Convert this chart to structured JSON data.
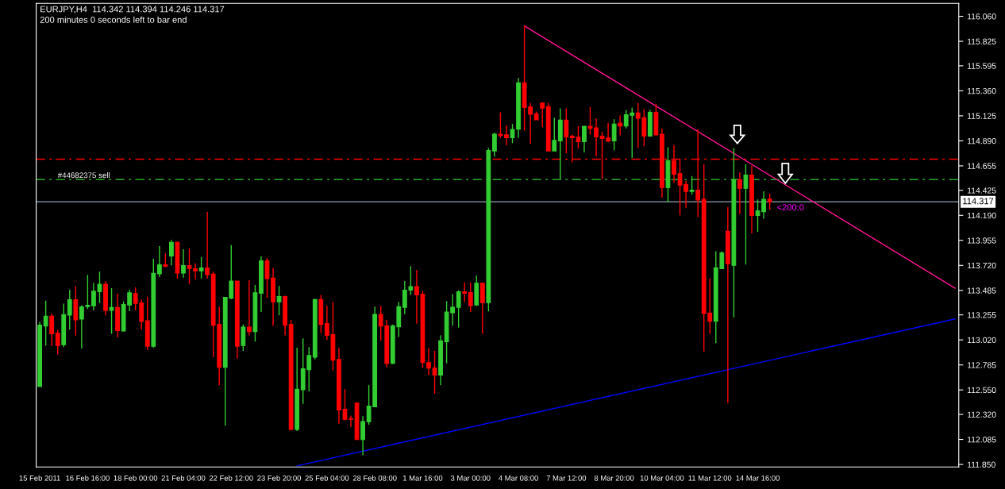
{
  "chart_data": {
    "type": "candlestick",
    "title": "EURJPY,H4  114.342 114.394 114.246 114.317",
    "subtitle": "200 minutes 0 seconds left to bar end",
    "categories": [
      "15 Feb 2011",
      null,
      null,
      null,
      null,
      null,
      null,
      null,
      "16 Feb 16:00",
      null,
      null,
      null,
      null,
      null,
      null,
      null,
      "18 Feb 00:00",
      null,
      null,
      null,
      null,
      null,
      null,
      null,
      "21 Feb 04:00",
      null,
      null,
      null,
      null,
      null,
      null,
      null,
      "22 Feb 12:00",
      null,
      null,
      null,
      null,
      null,
      null,
      null,
      "23 Feb 20:00",
      null,
      null,
      null,
      null,
      null,
      null,
      null,
      "25 Feb 04:00",
      null,
      null,
      null,
      null,
      null,
      null,
      null,
      "28 Feb 08:00",
      null,
      null,
      null,
      null,
      null,
      null,
      null,
      "1 Mar 16:00",
      null,
      null,
      null,
      null,
      null,
      null,
      null,
      "3 Mar 00:00",
      null,
      null,
      null,
      null,
      null,
      null,
      null,
      "4 Mar 08:00",
      null,
      null,
      null,
      null,
      null,
      null,
      null,
      "7 Mar 12:00",
      null,
      null,
      null,
      null,
      null,
      null,
      null,
      "8 Mar 20:00",
      null,
      null,
      null,
      null,
      null,
      null,
      null,
      "10 Mar 04:00",
      null,
      null,
      null,
      null,
      null,
      null,
      null,
      "11 Mar 12:00",
      null,
      null,
      null,
      null,
      null,
      null,
      null,
      "14 Mar 16:00",
      null,
      null,
      null,
      null,
      null,
      null,
      null,
      null,
      null,
      null,
      null,
      null,
      null,
      null,
      null,
      null,
      null,
      null,
      null,
      null,
      null,
      null,
      null,
      null,
      null,
      null,
      null,
      null,
      null,
      null,
      null,
      null,
      null
    ],
    "ohlc": [
      [
        112.581,
        113.19,
        112.581,
        113.158
      ],
      [
        113.151,
        113.389,
        112.966,
        113.243
      ],
      [
        113.243,
        113.268,
        112.961,
        113.078
      ],
      [
        113.082,
        113.112,
        112.88,
        112.968
      ],
      [
        112.975,
        113.36,
        112.953,
        113.258
      ],
      [
        113.253,
        113.492,
        113.117,
        113.397
      ],
      [
        113.397,
        113.526,
        113.061,
        113.209
      ],
      [
        113.216,
        113.346,
        112.939,
        113.331
      ],
      [
        113.333,
        113.631,
        113.309,
        113.346
      ],
      [
        113.341,
        113.557,
        113.297,
        113.477
      ],
      [
        113.472,
        113.66,
        113.367,
        113.543
      ],
      [
        113.543,
        113.572,
        113.251,
        113.297
      ],
      [
        113.297,
        113.506,
        113.078,
        113.324
      ],
      [
        113.324,
        113.455,
        113.041,
        113.107
      ],
      [
        113.104,
        113.382,
        113.1,
        113.353
      ],
      [
        113.348,
        113.492,
        113.29,
        113.462
      ],
      [
        113.455,
        113.514,
        113.297,
        113.363
      ],
      [
        113.367,
        113.397,
        113.114,
        113.194
      ],
      [
        113.199,
        113.426,
        112.924,
        112.961
      ],
      [
        112.961,
        113.782,
        112.946,
        113.645
      ],
      [
        113.64,
        113.901,
        113.611,
        113.726
      ],
      [
        113.726,
        113.835,
        113.704,
        113.711
      ],
      [
        113.808,
        113.959,
        113.721,
        113.937
      ],
      [
        113.937,
        113.945,
        113.596,
        113.648
      ],
      [
        113.648,
        113.872,
        113.604,
        113.718
      ],
      [
        113.718,
        113.879,
        113.545,
        113.691
      ],
      [
        113.689,
        113.74,
        113.589,
        113.669
      ],
      [
        113.669,
        113.799,
        113.596,
        113.696
      ],
      [
        113.696,
        114.223,
        113.596,
        113.633
      ],
      [
        113.638,
        113.66,
        112.858,
        113.158
      ],
      [
        113.165,
        113.331,
        112.595,
        112.763
      ],
      [
        112.763,
        113.419,
        112.215,
        113.419
      ],
      [
        113.411,
        113.911,
        113.404,
        113.572
      ],
      [
        113.572,
        113.572,
        112.844,
        112.961
      ],
      [
        112.968,
        113.165,
        112.917,
        113.141
      ],
      [
        113.141,
        113.582,
        113.063,
        113.099
      ],
      [
        113.099,
        113.536,
        113.004,
        113.462
      ],
      [
        113.458,
        113.806,
        113.282,
        113.762
      ],
      [
        113.762,
        113.791,
        113.414,
        113.596
      ],
      [
        113.601,
        113.696,
        113.151,
        113.377
      ],
      [
        113.377,
        113.528,
        113.251,
        113.428
      ],
      [
        113.428,
        113.436,
        113.063,
        113.158
      ],
      [
        113.165,
        113.207,
        112.171,
        112.179
      ],
      [
        112.179,
        112.946,
        112.164,
        112.556
      ],
      [
        112.551,
        113.034,
        112.42,
        112.749
      ],
      [
        112.741,
        112.953,
        112.537,
        112.873
      ],
      [
        112.858,
        113.406,
        112.836,
        113.399
      ],
      [
        113.399,
        113.443,
        113.085,
        113.165
      ],
      [
        113.173,
        113.341,
        113.019,
        113.063
      ],
      [
        113.07,
        113.377,
        112.734,
        112.829
      ],
      [
        112.836,
        112.946,
        112.23,
        112.361
      ],
      [
        112.369,
        112.559,
        112.266,
        112.274
      ],
      [
        112.281,
        112.31,
        112.201,
        112.274
      ],
      [
        112.427,
        112.434,
        112.084,
        112.084
      ],
      [
        112.084,
        112.303,
        111.938,
        112.252
      ],
      [
        112.252,
        112.595,
        112.223,
        112.398
      ],
      [
        112.391,
        113.333,
        112.391,
        113.26
      ],
      [
        113.26,
        113.341,
        113.012,
        113.151
      ],
      [
        113.151,
        113.209,
        112.763,
        112.8
      ],
      [
        112.8,
        113.165,
        112.793,
        113.151
      ],
      [
        113.143,
        113.377,
        113.048,
        113.333
      ],
      [
        113.326,
        113.574,
        113.26,
        113.487
      ],
      [
        113.487,
        113.713,
        113.443,
        113.521
      ],
      [
        113.521,
        113.677,
        113.173,
        113.443
      ],
      [
        113.45,
        113.479,
        112.756,
        112.807
      ],
      [
        112.807,
        112.946,
        112.69,
        112.756
      ],
      [
        112.756,
        112.917,
        112.515,
        112.69
      ],
      [
        112.69,
        113.063,
        112.595,
        113.012
      ],
      [
        113.004,
        113.384,
        112.8,
        113.282
      ],
      [
        113.275,
        113.45,
        113.151,
        113.326
      ],
      [
        113.326,
        113.487,
        113.136,
        113.472
      ],
      [
        113.472,
        113.56,
        113.377,
        113.458
      ],
      [
        113.465,
        113.56,
        113.282,
        113.341
      ],
      [
        113.348,
        113.626,
        113.341,
        113.553
      ],
      [
        113.553,
        113.553,
        113.078,
        113.37
      ],
      [
        113.37,
        114.822,
        113.289,
        114.8
      ],
      [
        114.795,
        114.968,
        114.742,
        114.953
      ],
      [
        114.953,
        115.158,
        114.919,
        114.941
      ],
      [
        114.946,
        115.034,
        114.846,
        114.919
      ],
      [
        114.919,
        115.048,
        114.868,
        114.997
      ],
      [
        115.0,
        115.48,
        114.919,
        115.436
      ],
      [
        115.436,
        115.974,
        114.985,
        115.204
      ],
      [
        115.209,
        115.246,
        114.861,
        115.139
      ],
      [
        115.144,
        115.165,
        115.088,
        115.088
      ],
      [
        115.246,
        115.253,
        115.019,
        115.197
      ],
      [
        115.212,
        115.246,
        114.795,
        114.795
      ],
      [
        114.795,
        115.107,
        114.795,
        114.895
      ],
      [
        114.89,
        115.195,
        114.53,
        115.085
      ],
      [
        115.085,
        115.195,
        114.773,
        114.927
      ],
      [
        114.934,
        114.949,
        114.686,
        114.919
      ],
      [
        114.924,
        115.027,
        114.817,
        114.883
      ],
      [
        114.883,
        115.027,
        114.781,
        115.027
      ],
      [
        115.027,
        115.209,
        114.949,
        115.007
      ],
      [
        115.012,
        115.1,
        114.744,
        114.927
      ],
      [
        114.934,
        114.975,
        114.53,
        114.912
      ],
      [
        114.917,
        115.058,
        114.876,
        114.888
      ],
      [
        114.89,
        115.092,
        114.802,
        115.048
      ],
      [
        115.056,
        115.129,
        114.941,
        115.029
      ],
      [
        115.029,
        115.18,
        115.007,
        115.136
      ],
      [
        115.131,
        115.202,
        114.729,
        115.151
      ],
      [
        115.151,
        115.246,
        114.824,
        115.102
      ],
      [
        115.107,
        115.187,
        114.839,
        114.934
      ],
      [
        114.934,
        115.18,
        114.934,
        115.158
      ],
      [
        115.158,
        115.239,
        114.941,
        114.946
      ],
      [
        114.953,
        115.005,
        114.357,
        114.452
      ],
      [
        114.452,
        114.829,
        114.313,
        114.705
      ],
      [
        114.705,
        114.851,
        114.496,
        114.576
      ],
      [
        114.581,
        114.72,
        114.189,
        114.474
      ],
      [
        114.478,
        114.515,
        114.262,
        114.415
      ],
      [
        114.415,
        114.559,
        114.386,
        114.427
      ],
      [
        114.427,
        115.0,
        114.174,
        114.335
      ],
      [
        114.34,
        114.669,
        112.91,
        113.268
      ],
      [
        113.273,
        113.597,
        113.078,
        113.195
      ],
      [
        113.195,
        113.852,
        112.99,
        113.697
      ],
      [
        113.689,
        113.852,
        113.689,
        113.838
      ],
      [
        114.04,
        114.267,
        112.427,
        113.736
      ],
      [
        113.721,
        114.822,
        113.231,
        114.525
      ],
      [
        114.525,
        114.595,
        114.203,
        114.444
      ],
      [
        114.444,
        114.669,
        113.728,
        114.569
      ],
      [
        114.569,
        114.656,
        114.021,
        114.189
      ],
      [
        114.189,
        114.34,
        114.035,
        114.232
      ],
      [
        114.225,
        114.415,
        114.159,
        114.34
      ],
      [
        114.342,
        114.394,
        114.246,
        114.317
      ],
      null,
      null,
      null,
      null,
      null,
      null,
      null,
      null,
      null,
      null,
      null,
      null,
      null,
      null,
      null,
      null,
      null,
      null,
      null,
      null,
      null,
      null,
      null,
      null,
      null,
      null,
      null,
      null,
      null,
      null,
      null
    ],
    "colors": [
      "#32cd32",
      "#32cd32",
      "#ff0000",
      "#ff0000",
      "#32cd32",
      "#32cd32",
      "#ff0000",
      "#32cd32",
      "#32cd32",
      "#32cd32",
      "#32cd32",
      "#ff0000",
      "#32cd32",
      "#ff0000",
      "#32cd32",
      "#32cd32",
      "#ff0000",
      "#ff0000",
      "#ff0000",
      "#32cd32",
      "#32cd32",
      "#ff0000",
      "#32cd32",
      "#ff0000",
      "#32cd32",
      "#ff0000",
      "#ff0000",
      "#32cd32",
      "#ff0000",
      "#ff0000",
      "#ff0000",
      "#32cd32",
      "#32cd32",
      "#ff0000",
      "#32cd32",
      "#ff0000",
      "#32cd32",
      "#32cd32",
      "#ff0000",
      "#ff0000",
      "#32cd32",
      "#ff0000",
      "#ff0000",
      "#32cd32",
      "#32cd32",
      "#32cd32",
      "#32cd32",
      "#ff0000",
      "#ff0000",
      "#ff0000",
      "#ff0000",
      "#ff0000",
      "#ff0000",
      "#ff0000",
      "#32cd32",
      "#32cd32",
      "#32cd32",
      "#ff0000",
      "#ff0000",
      "#32cd32",
      "#32cd32",
      "#32cd32",
      "#32cd32",
      "#ff0000",
      "#ff0000",
      "#ff0000",
      "#ff0000",
      "#32cd32",
      "#32cd32",
      "#32cd32",
      "#32cd32",
      "#ff0000",
      "#ff0000",
      "#32cd32",
      "#ff0000",
      "#32cd32",
      "#32cd32",
      "#ff0000",
      "#ff0000",
      "#32cd32",
      "#32cd32",
      "#ff0000",
      "#ff0000",
      "#ff0000",
      "#ff0000",
      "#ff0000",
      "#32cd32",
      "#32cd32",
      "#ff0000",
      "#ff0000",
      "#ff0000",
      "#32cd32",
      "#ff0000",
      "#ff0000",
      "#ff0000",
      "#ff0000",
      "#32cd32",
      "#ff0000",
      "#32cd32",
      "#32cd32",
      "#ff0000",
      "#ff0000",
      "#32cd32",
      "#ff0000",
      "#ff0000",
      "#32cd32",
      "#ff0000",
      "#ff0000",
      "#ff0000",
      "#32cd32",
      "#ff0000",
      "#ff0000",
      "#ff0000",
      "#32cd32",
      "#32cd32",
      "#ff0000",
      "#32cd32",
      "#ff0000",
      "#32cd32",
      "#ff0000",
      "#32cd32",
      "#32cd32",
      "#ff0000",
      null,
      null,
      null,
      null,
      null,
      null,
      null,
      null,
      null,
      null,
      null,
      null,
      null,
      null,
      null,
      null,
      null,
      null,
      null,
      null,
      null,
      null,
      null,
      null,
      null,
      null,
      null,
      null,
      null,
      null,
      null
    ],
    "series": [
      {
        "type": "line",
        "color": "#ff1493",
        "values": [
          null,
          null,
          null,
          null,
          null,
          null,
          null,
          null,
          null,
          null,
          null,
          null,
          null,
          null,
          null,
          null,
          null,
          null,
          null,
          null,
          null,
          null,
          null,
          null,
          null,
          null,
          null,
          null,
          null,
          null,
          null,
          null,
          null,
          null,
          null,
          null,
          null,
          null,
          null,
          null,
          null,
          null,
          null,
          null,
          null,
          null,
          null,
          null,
          null,
          null,
          null,
          null,
          null,
          null,
          null,
          null,
          null,
          null,
          null,
          null,
          null,
          null,
          null,
          null,
          null,
          null,
          null,
          null,
          null,
          null,
          null,
          null,
          null,
          null,
          null,
          null,
          null,
          null,
          null,
          null,
          null,
          115.97,
          null,
          null,
          null,
          null,
          null,
          null,
          null,
          null,
          null,
          null,
          null,
          null,
          null,
          null,
          null,
          null,
          null,
          null,
          null,
          null,
          null,
          null,
          null,
          null,
          null,
          null,
          null,
          null,
          null,
          null,
          null,
          null,
          null,
          null,
          null,
          null,
          null,
          null,
          null,
          null,
          null,
          null,
          null,
          null,
          null,
          null,
          null,
          null,
          null,
          null,
          null,
          null,
          null,
          null,
          null,
          null,
          null,
          null,
          null,
          null,
          null,
          null,
          null,
          null,
          null,
          null,
          null,
          null,
          null,
          null,
          null,
          113.505
        ]
      },
      {
        "type": "line",
        "color": "#0000ff",
        "values": [
          null,
          null,
          null,
          null,
          null,
          null,
          null,
          null,
          null,
          null,
          null,
          null,
          null,
          null,
          null,
          null,
          null,
          null,
          null,
          null,
          null,
          null,
          null,
          null,
          null,
          null,
          null,
          null,
          null,
          null,
          null,
          null,
          null,
          null,
          null,
          null,
          null,
          null,
          null,
          null,
          null,
          null,
          null,
          111.837,
          null,
          null,
          null,
          null,
          null,
          null,
          null,
          null,
          null,
          null,
          null,
          null,
          null,
          null,
          null,
          null,
          null,
          null,
          null,
          null,
          null,
          null,
          null,
          null,
          null,
          null,
          null,
          null,
          null,
          null,
          null,
          null,
          null,
          null,
          null,
          null,
          null,
          null,
          null,
          null,
          null,
          null,
          null,
          null,
          null,
          null,
          null,
          null,
          null,
          null,
          null,
          null,
          null,
          null,
          null,
          null,
          null,
          null,
          null,
          null,
          null,
          null,
          null,
          null,
          null,
          null,
          null,
          null,
          null,
          null,
          null,
          null,
          null,
          null,
          null,
          null,
          null,
          null,
          null,
          null,
          null,
          null,
          null,
          null,
          null,
          null,
          null,
          null,
          null,
          null,
          null,
          null,
          null,
          null,
          null,
          null,
          null,
          null,
          null,
          null,
          null,
          null,
          null,
          null,
          null,
          null,
          null,
          null,
          null,
          113.217
        ]
      }
    ],
    "ref_lines": [
      {
        "axis": "y",
        "value": 114.718,
        "color": "#ff0000",
        "line_style": "dashed"
      },
      {
        "axis": "y",
        "value": 114.527,
        "color": "#32cd32",
        "line_style": "dashed",
        "label": "#44682375 sell"
      },
      {
        "axis": "y",
        "value": 114.317,
        "color": "#778899",
        "line_style": "solid",
        "label": "114.317"
      }
    ],
    "annotations": [
      "<200:0"
    ],
    "ylim": [
      111.826,
      116.181
    ],
    "yticks": [
      {
        "value": 116.06,
        "label": "116.060"
      },
      115.825,
      115.595,
      {
        "value": 115.36,
        "label": "115.360"
      },
      115.125,
      {
        "value": 114.89,
        "label": "114.890"
      },
      114.655,
      114.425,
      {
        "value": 114.19,
        "label": "114.190"
      },
      113.955,
      {
        "value": 113.72,
        "label": "113.720"
      },
      113.485,
      113.255,
      {
        "value": 113.02,
        "label": "113.020"
      },
      112.785,
      {
        "value": 112.55,
        "label": "112.550"
      },
      {
        "value": 112.32,
        "label": "112.320"
      },
      112.085,
      {
        "value": 111.85,
        "label": "111.850"
      }
    ]
  }
}
